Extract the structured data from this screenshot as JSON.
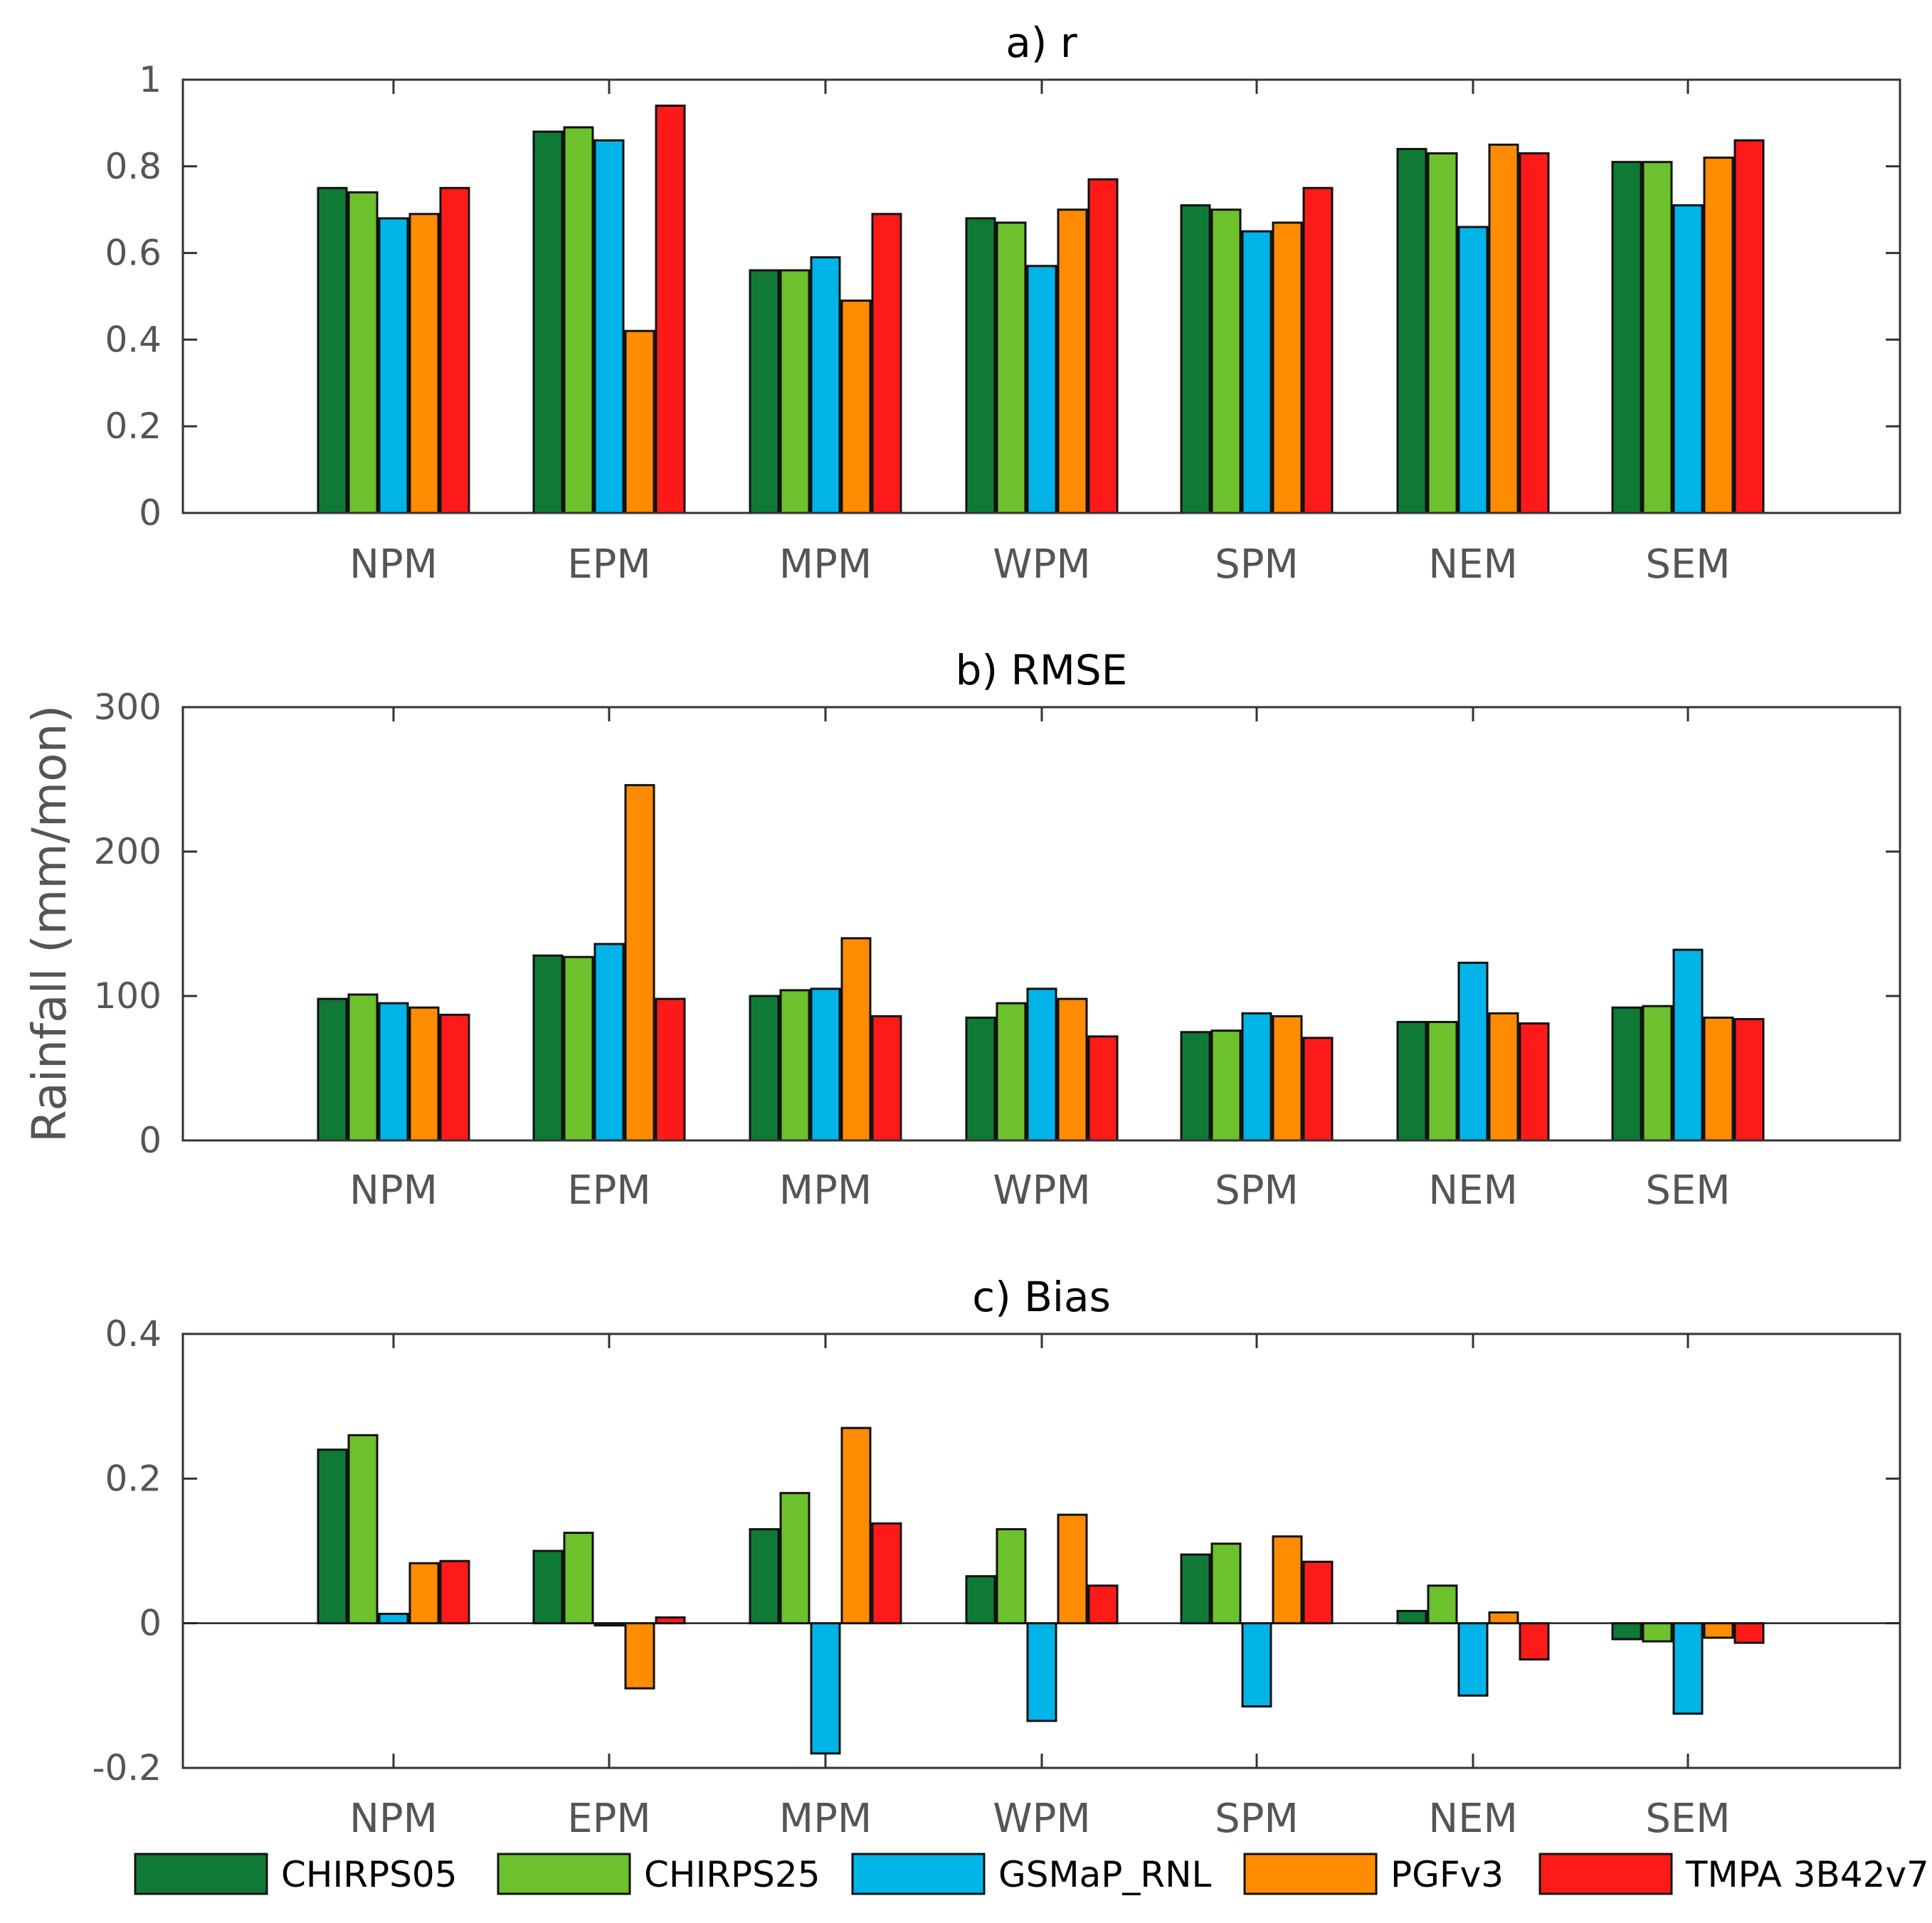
{
  "chart_data": [
    {
      "type": "bar",
      "title": "a) r",
      "ylabel": "",
      "ylim": [
        0,
        1
      ],
      "yticks": [
        0,
        0.2,
        0.4,
        0.6,
        0.8,
        1
      ],
      "ytick_labels": [
        "0",
        "0.2",
        "0.4",
        "0.6",
        "0.8",
        "1"
      ],
      "categories": [
        "NPM",
        "EPM",
        "MPM",
        "WPM",
        "SPM",
        "NEM",
        "SEM"
      ],
      "series": [
        {
          "name": "CHIRPS05",
          "values": [
            0.75,
            0.88,
            0.56,
            0.68,
            0.71,
            0.84,
            0.81
          ]
        },
        {
          "name": "CHIRPS25",
          "values": [
            0.74,
            0.89,
            0.56,
            0.67,
            0.7,
            0.83,
            0.81
          ]
        },
        {
          "name": "GSMaP_RNL",
          "values": [
            0.68,
            0.86,
            0.59,
            0.57,
            0.65,
            0.66,
            0.71
          ]
        },
        {
          "name": "PGFv3",
          "values": [
            0.69,
            0.42,
            0.49,
            0.7,
            0.67,
            0.85,
            0.82
          ]
        },
        {
          "name": "TMPA 3B42v7",
          "values": [
            0.75,
            0.94,
            0.69,
            0.77,
            0.75,
            0.83,
            0.86
          ]
        }
      ]
    },
    {
      "type": "bar",
      "title": "b) RMSE",
      "ylabel": "Rainfall (mm/mon)",
      "ylim": [
        0,
        300
      ],
      "yticks": [
        0,
        100,
        200,
        300
      ],
      "ytick_labels": [
        "0",
        "100",
        "200",
        "300"
      ],
      "categories": [
        "NPM",
        "EPM",
        "MPM",
        "WPM",
        "SPM",
        "NEM",
        "SEM"
      ],
      "series": [
        {
          "name": "CHIRPS05",
          "values": [
            98,
            128,
            100,
            85,
            75,
            82,
            92
          ]
        },
        {
          "name": "CHIRPS25",
          "values": [
            101,
            127,
            104,
            95,
            76,
            82,
            93
          ]
        },
        {
          "name": "GSMaP_RNL",
          "values": [
            95,
            136,
            105,
            105,
            88,
            123,
            132
          ]
        },
        {
          "name": "PGFv3",
          "values": [
            92,
            246,
            140,
            98,
            86,
            88,
            85
          ]
        },
        {
          "name": "TMPA 3B42v7",
          "values": [
            87,
            98,
            86,
            72,
            71,
            81,
            84
          ]
        }
      ]
    },
    {
      "type": "bar",
      "title": "c) Bias",
      "ylabel": "",
      "ylim": [
        -0.2,
        0.4
      ],
      "yticks": [
        -0.2,
        0,
        0.2,
        0.4
      ],
      "ytick_labels": [
        "-0.2",
        "0",
        "0.2",
        "0.4"
      ],
      "categories": [
        "NPM",
        "EPM",
        "MPM",
        "WPM",
        "SPM",
        "NEM",
        "SEM"
      ],
      "series": [
        {
          "name": "CHIRPS05",
          "values": [
            0.24,
            0.1,
            0.13,
            0.065,
            0.095,
            0.017,
            -0.022
          ]
        },
        {
          "name": "CHIRPS25",
          "values": [
            0.26,
            0.125,
            0.18,
            0.13,
            0.11,
            0.052,
            -0.025
          ]
        },
        {
          "name": "GSMaP_RNL",
          "values": [
            0.013,
            -0.003,
            -0.18,
            -0.135,
            -0.115,
            -0.1,
            -0.125
          ]
        },
        {
          "name": "PGFv3",
          "values": [
            0.083,
            -0.09,
            0.27,
            0.15,
            0.12,
            0.015,
            -0.02
          ]
        },
        {
          "name": "TMPA 3B42v7",
          "values": [
            0.086,
            0.008,
            0.138,
            0.052,
            0.085,
            -0.05,
            -0.027
          ]
        }
      ]
    }
  ],
  "legend": {
    "items": [
      {
        "label": "CHIRPS05",
        "color": "#0e7a36"
      },
      {
        "label": "CHIRPS25",
        "color": "#6cc12c"
      },
      {
        "label": "GSMaP_RNL",
        "color": "#00b4e8"
      },
      {
        "label": "PGFv3",
        "color": "#ff8c00"
      },
      {
        "label": "TMPA 3B42v7",
        "color": "#ff1a1a"
      }
    ]
  },
  "colors": {
    "CHIRPS05": "#0e7a36",
    "CHIRPS25": "#6cc12c",
    "GSMaP_RNL": "#00b4e8",
    "PGFv3": "#ff8c00",
    "TMPA 3B42v7": "#ff1a1a"
  }
}
